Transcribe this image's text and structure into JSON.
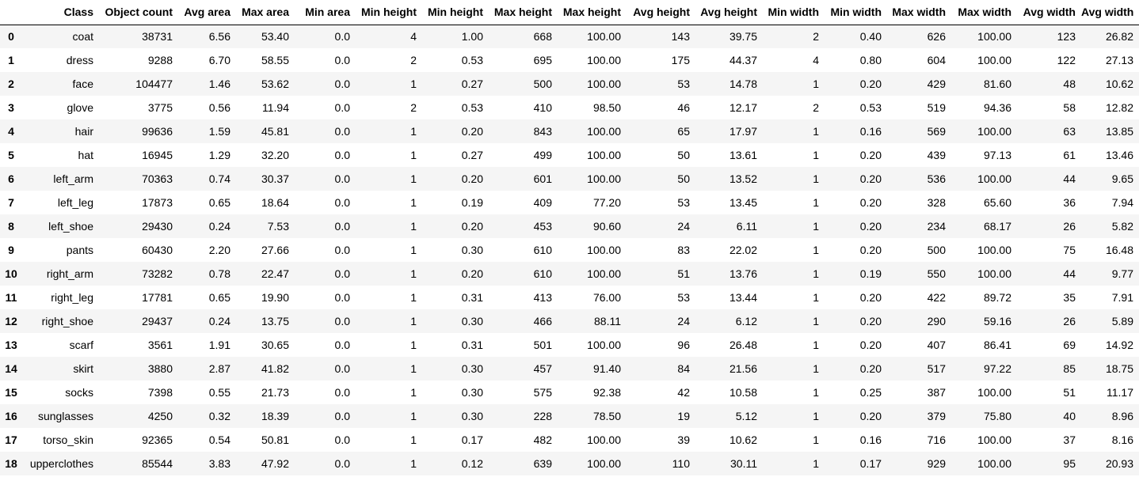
{
  "table": {
    "columns": [
      "",
      "Class",
      "Object count",
      "Avg area",
      "Max area",
      "Min area",
      "Min height",
      "Min height",
      "Max height",
      "Max height",
      "Avg height",
      "Avg height",
      "Min width",
      "Min width",
      "Max width",
      "Max width",
      "Avg width",
      "Avg width"
    ],
    "rows": [
      [
        "0",
        "coat",
        "38731",
        "6.56",
        "53.40",
        "0.0",
        "4",
        "1.00",
        "668",
        "100.00",
        "143",
        "39.75",
        "2",
        "0.40",
        "626",
        "100.00",
        "123",
        "26.82"
      ],
      [
        "1",
        "dress",
        "9288",
        "6.70",
        "58.55",
        "0.0",
        "2",
        "0.53",
        "695",
        "100.00",
        "175",
        "44.37",
        "4",
        "0.80",
        "604",
        "100.00",
        "122",
        "27.13"
      ],
      [
        "2",
        "face",
        "104477",
        "1.46",
        "53.62",
        "0.0",
        "1",
        "0.27",
        "500",
        "100.00",
        "53",
        "14.78",
        "1",
        "0.20",
        "429",
        "81.60",
        "48",
        "10.62"
      ],
      [
        "3",
        "glove",
        "3775",
        "0.56",
        "11.94",
        "0.0",
        "2",
        "0.53",
        "410",
        "98.50",
        "46",
        "12.17",
        "2",
        "0.53",
        "519",
        "94.36",
        "58",
        "12.82"
      ],
      [
        "4",
        "hair",
        "99636",
        "1.59",
        "45.81",
        "0.0",
        "1",
        "0.20",
        "843",
        "100.00",
        "65",
        "17.97",
        "1",
        "0.16",
        "569",
        "100.00",
        "63",
        "13.85"
      ],
      [
        "5",
        "hat",
        "16945",
        "1.29",
        "32.20",
        "0.0",
        "1",
        "0.27",
        "499",
        "100.00",
        "50",
        "13.61",
        "1",
        "0.20",
        "439",
        "97.13",
        "61",
        "13.46"
      ],
      [
        "6",
        "left_arm",
        "70363",
        "0.74",
        "30.37",
        "0.0",
        "1",
        "0.20",
        "601",
        "100.00",
        "50",
        "13.52",
        "1",
        "0.20",
        "536",
        "100.00",
        "44",
        "9.65"
      ],
      [
        "7",
        "left_leg",
        "17873",
        "0.65",
        "18.64",
        "0.0",
        "1",
        "0.19",
        "409",
        "77.20",
        "53",
        "13.45",
        "1",
        "0.20",
        "328",
        "65.60",
        "36",
        "7.94"
      ],
      [
        "8",
        "left_shoe",
        "29430",
        "0.24",
        "7.53",
        "0.0",
        "1",
        "0.20",
        "453",
        "90.60",
        "24",
        "6.11",
        "1",
        "0.20",
        "234",
        "68.17",
        "26",
        "5.82"
      ],
      [
        "9",
        "pants",
        "60430",
        "2.20",
        "27.66",
        "0.0",
        "1",
        "0.30",
        "610",
        "100.00",
        "83",
        "22.02",
        "1",
        "0.20",
        "500",
        "100.00",
        "75",
        "16.48"
      ],
      [
        "10",
        "right_arm",
        "73282",
        "0.78",
        "22.47",
        "0.0",
        "1",
        "0.20",
        "610",
        "100.00",
        "51",
        "13.76",
        "1",
        "0.19",
        "550",
        "100.00",
        "44",
        "9.77"
      ],
      [
        "11",
        "right_leg",
        "17781",
        "0.65",
        "19.90",
        "0.0",
        "1",
        "0.31",
        "413",
        "76.00",
        "53",
        "13.44",
        "1",
        "0.20",
        "422",
        "89.72",
        "35",
        "7.91"
      ],
      [
        "12",
        "right_shoe",
        "29437",
        "0.24",
        "13.75",
        "0.0",
        "1",
        "0.30",
        "466",
        "88.11",
        "24",
        "6.12",
        "1",
        "0.20",
        "290",
        "59.16",
        "26",
        "5.89"
      ],
      [
        "13",
        "scarf",
        "3561",
        "1.91",
        "30.65",
        "0.0",
        "1",
        "0.31",
        "501",
        "100.00",
        "96",
        "26.48",
        "1",
        "0.20",
        "407",
        "86.41",
        "69",
        "14.92"
      ],
      [
        "14",
        "skirt",
        "3880",
        "2.87",
        "41.82",
        "0.0",
        "1",
        "0.30",
        "457",
        "91.40",
        "84",
        "21.56",
        "1",
        "0.20",
        "517",
        "97.22",
        "85",
        "18.75"
      ],
      [
        "15",
        "socks",
        "7398",
        "0.55",
        "21.73",
        "0.0",
        "1",
        "0.30",
        "575",
        "92.38",
        "42",
        "10.58",
        "1",
        "0.25",
        "387",
        "100.00",
        "51",
        "11.17"
      ],
      [
        "16",
        "sunglasses",
        "4250",
        "0.32",
        "18.39",
        "0.0",
        "1",
        "0.30",
        "228",
        "78.50",
        "19",
        "5.12",
        "1",
        "0.20",
        "379",
        "75.80",
        "40",
        "8.96"
      ],
      [
        "17",
        "torso_skin",
        "92365",
        "0.54",
        "50.81",
        "0.0",
        "1",
        "0.17",
        "482",
        "100.00",
        "39",
        "10.62",
        "1",
        "0.16",
        "716",
        "100.00",
        "37",
        "8.16"
      ],
      [
        "18",
        "upperclothes",
        "85544",
        "3.83",
        "47.92",
        "0.0",
        "1",
        "0.12",
        "639",
        "100.00",
        "110",
        "30.11",
        "1",
        "0.17",
        "929",
        "100.00",
        "95",
        "20.93"
      ]
    ]
  }
}
